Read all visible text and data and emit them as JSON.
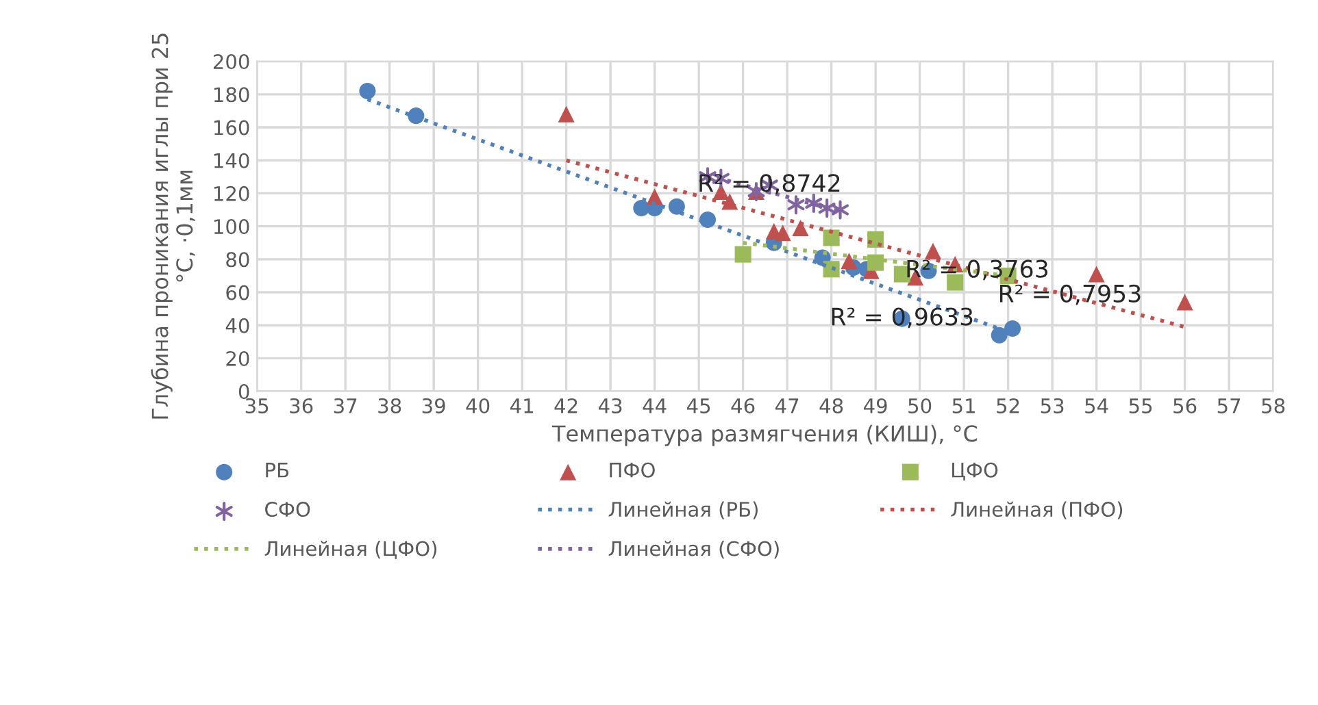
{
  "chart_data": {
    "type": "scatter",
    "xlabel": "Температура размягчения (КИШ), °С",
    "ylabel": "Глубина проникания иглы при 25\n°С, ·0,1мм",
    "xlim": [
      35,
      58
    ],
    "xticks": [
      35,
      36,
      37,
      38,
      39,
      40,
      41,
      42,
      43,
      44,
      45,
      46,
      47,
      48,
      49,
      50,
      51,
      52,
      53,
      54,
      55,
      56,
      57,
      58
    ],
    "ylim": [
      0,
      200
    ],
    "yticks": [
      0,
      20,
      40,
      60,
      80,
      100,
      120,
      140,
      160,
      180,
      200
    ],
    "grid": true,
    "legend": "bottom",
    "series": [
      {
        "name": "РБ",
        "marker": "circle",
        "color": "#4f81bd",
        "x": [
          37.5,
          38.6,
          43.7,
          44.0,
          44.5,
          45.2,
          46.7,
          47.8,
          48.5,
          48.8,
          49.6,
          50.2,
          51.8,
          52.1
        ],
        "values": [
          182,
          167,
          111,
          111,
          112,
          104,
          90,
          81,
          75,
          74,
          44,
          73,
          34,
          38
        ]
      },
      {
        "name": "ПФО",
        "marker": "triangle",
        "color": "#c0504d",
        "x": [
          42.0,
          44.0,
          45.5,
          45.7,
          46.3,
          46.7,
          46.9,
          47.3,
          48.4,
          48.9,
          49.9,
          50.3,
          50.8,
          54.0,
          56.0
        ],
        "values": [
          168,
          118,
          121,
          115,
          121,
          97,
          96,
          99,
          79,
          73,
          69,
          85,
          77,
          71,
          54
        ]
      },
      {
        "name": "ЦФО",
        "marker": "square",
        "color": "#9bbb59",
        "x": [
          46.0,
          48.0,
          48.0,
          49.0,
          49.0,
          49.6,
          50.8,
          52.0
        ],
        "values": [
          83,
          93,
          74,
          92,
          78,
          71,
          66,
          70
        ]
      },
      {
        "name": "СФО",
        "marker": "cross",
        "color": "#8064a2",
        "x": [
          45.2,
          45.5,
          46.3,
          46.6,
          47.2,
          47.6,
          47.9,
          48.2
        ],
        "values": [
          130,
          129,
          121,
          125,
          113,
          114,
          111,
          110
        ]
      },
      {
        "name": "Линейная (РБ)",
        "type": "line",
        "line_style": "dotted",
        "color": "#4f81bd",
        "x": [
          37.5,
          52.1
        ],
        "values": [
          177,
          35
        ]
      },
      {
        "name": "Линейная (ПФО)",
        "type": "line",
        "line_style": "dotted",
        "color": "#c0504d",
        "x": [
          42.0,
          56.0
        ],
        "values": [
          140,
          39
        ]
      },
      {
        "name": "Линейная (ЦФО)",
        "type": "line",
        "line_style": "dotted",
        "color": "#9bbb59",
        "x": [
          46.0,
          52.0
        ],
        "values": [
          90,
          70
        ]
      },
      {
        "name": "Линейная (СФО)",
        "type": "line",
        "line_style": "dotted",
        "color": "#8064a2",
        "x": [
          45.2,
          48.2
        ],
        "values": [
          131,
          109
        ]
      }
    ],
    "annotations": [
      {
        "text": "R² = 0,8742",
        "x": 46.6,
        "y": 125
      },
      {
        "text": "R² = 0,3763",
        "x": 51.3,
        "y": 73
      },
      {
        "text": "R² = 0,9633",
        "x": 49.6,
        "y": 44
      },
      {
        "text": "R² = 0,7953",
        "x": 53.4,
        "y": 58
      }
    ]
  }
}
